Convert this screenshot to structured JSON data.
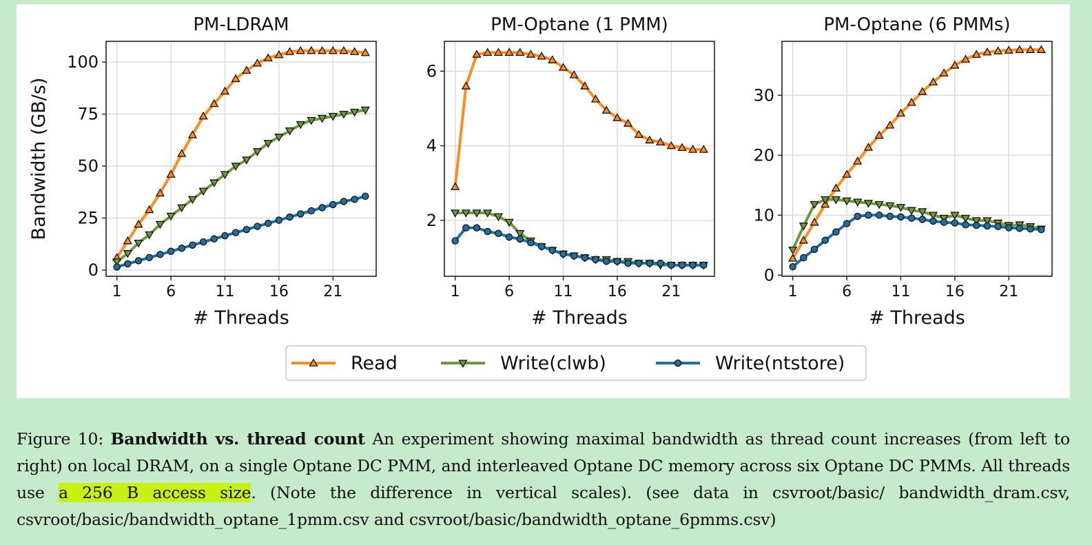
{
  "chart_data": [
    {
      "type": "line",
      "title": "PM-LDRAM",
      "xlabel": "# Threads",
      "ylabel": "Bandwidth (GB/s)",
      "xlim": [
        0,
        25
      ],
      "ylim": [
        -3,
        110
      ],
      "xticks": [
        1,
        6,
        11,
        16,
        21
      ],
      "yticks": [
        0,
        25,
        50,
        75,
        100
      ],
      "grid": true,
      "x": [
        1,
        2,
        3,
        4,
        5,
        6,
        7,
        8,
        9,
        10,
        11,
        12,
        13,
        14,
        15,
        16,
        17,
        18,
        19,
        20,
        21,
        22,
        23,
        24
      ],
      "series": [
        {
          "name": "Read",
          "color": "#ff8c1a",
          "marker": "triangle-up",
          "values": [
            6,
            14,
            22,
            29,
            37,
            46,
            56,
            65,
            74,
            80,
            86,
            92,
            96,
            99.5,
            102,
            103.5,
            105,
            105.5,
            105.5,
            105.5,
            105.5,
            105.5,
            105,
            104.5
          ]
        },
        {
          "name": "Write(clwb)",
          "color": "#6f9a3c",
          "marker": "triangle-down",
          "values": [
            4,
            8,
            13,
            17,
            22,
            26,
            30,
            34,
            38,
            42,
            46,
            50,
            53,
            57,
            61,
            64,
            67,
            70,
            72,
            73,
            74,
            75,
            76,
            77
          ]
        },
        {
          "name": "Write(ntstore)",
          "color": "#1f6f9f",
          "marker": "circle",
          "values": [
            1.5,
            3,
            4.5,
            6,
            7.5,
            9,
            10.5,
            12,
            13.5,
            15,
            16.5,
            18,
            19.5,
            21,
            22.5,
            24,
            25.5,
            27,
            28.5,
            30,
            31.5,
            33,
            34,
            35.5
          ]
        }
      ]
    },
    {
      "type": "line",
      "title": "PM-Optane (1 PMM)",
      "xlabel": "# Threads",
      "ylabel": "",
      "xlim": [
        0,
        25
      ],
      "ylim": [
        0.5,
        6.8
      ],
      "xticks": [
        1,
        6,
        11,
        16,
        21
      ],
      "yticks": [
        2,
        4,
        6
      ],
      "grid": true,
      "x": [
        1,
        2,
        3,
        4,
        5,
        6,
        7,
        8,
        9,
        10,
        11,
        12,
        13,
        14,
        15,
        16,
        17,
        18,
        19,
        20,
        21,
        22,
        23,
        24
      ],
      "series": [
        {
          "name": "Read",
          "color": "#ff8c1a",
          "marker": "triangle-up",
          "values": [
            2.9,
            5.6,
            6.45,
            6.5,
            6.5,
            6.5,
            6.5,
            6.45,
            6.4,
            6.3,
            6.1,
            5.9,
            5.6,
            5.25,
            4.95,
            4.75,
            4.6,
            4.3,
            4.15,
            4.1,
            4.0,
            3.95,
            3.9,
            3.9
          ]
        },
        {
          "name": "Write(clwb)",
          "color": "#6f9a3c",
          "marker": "triangle-down",
          "values": [
            2.2,
            2.2,
            2.2,
            2.2,
            2.1,
            1.95,
            1.65,
            1.45,
            1.3,
            1.2,
            1.1,
            1.05,
            1.0,
            0.95,
            0.95,
            0.9,
            0.9,
            0.85,
            0.85,
            0.8,
            0.8,
            0.8,
            0.8,
            0.8
          ]
        },
        {
          "name": "Write(ntstore)",
          "color": "#1f6f9f",
          "marker": "circle",
          "values": [
            1.45,
            1.8,
            1.8,
            1.7,
            1.65,
            1.55,
            1.5,
            1.4,
            1.3,
            1.2,
            1.1,
            1.05,
            1.0,
            0.95,
            0.9,
            0.9,
            0.85,
            0.85,
            0.85,
            0.85,
            0.8,
            0.8,
            0.8,
            0.8
          ]
        }
      ]
    },
    {
      "type": "line",
      "title": "PM-Optane (6 PMMs)",
      "xlabel": "# Threads",
      "ylabel": "",
      "xlim": [
        0,
        25
      ],
      "ylim": [
        -0.2,
        39
      ],
      "xticks": [
        1,
        6,
        11,
        16,
        21
      ],
      "yticks": [
        0,
        10,
        20,
        30
      ],
      "grid": true,
      "x": [
        1,
        2,
        3,
        4,
        5,
        6,
        7,
        8,
        9,
        10,
        11,
        12,
        13,
        14,
        15,
        16,
        17,
        18,
        19,
        20,
        21,
        22,
        23,
        24
      ],
      "series": [
        {
          "name": "Read",
          "color": "#ff8c1a",
          "marker": "triangle-up",
          "values": [
            2.8,
            5.8,
            8.8,
            11.8,
            14.5,
            16.8,
            19,
            21.3,
            23.3,
            25,
            27,
            28.8,
            30.6,
            32.2,
            33.7,
            35,
            36,
            36.8,
            37.2,
            37.4,
            37.5,
            37.6,
            37.6,
            37.6
          ]
        },
        {
          "name": "Write(clwb)",
          "color": "#6f9a3c",
          "marker": "triangle-down",
          "values": [
            4.2,
            8.2,
            11.8,
            12.6,
            12.6,
            12.4,
            12.2,
            12,
            11.8,
            11.6,
            11.3,
            10.8,
            10.6,
            10,
            9.5,
            10,
            9.5,
            9.1,
            9.1,
            8.7,
            8.3,
            8.4,
            8.1,
            7.7
          ]
        },
        {
          "name": "Write(ntstore)",
          "color": "#1f6f9f",
          "marker": "circle",
          "values": [
            1.4,
            2.9,
            4.3,
            5.8,
            7.2,
            8.6,
            9.8,
            10,
            10,
            9.8,
            9.7,
            9.5,
            9.3,
            9,
            8.8,
            8.7,
            8.4,
            8.3,
            8.2,
            8.1,
            7.9,
            7.8,
            7.7,
            7.6
          ]
        }
      ]
    }
  ],
  "legend": {
    "placement": "bottom-center",
    "entries": [
      "Read",
      "Write(clwb)",
      "Write(ntstore)"
    ]
  },
  "caption": {
    "prefix": "Figure 10: ",
    "bold": "Bandwidth vs. thread count",
    "text_1": " An experiment showing maximal bandwidth as thread count increases (from left to right) on local DRAM, on a single Optane DC PMM, and interleaved Optane DC memory across six Optane DC PMMs.  All threads use ",
    "highlight": "a 256 B access size",
    "text_2": ".  (Note the difference in vertical scales). (see data in csvroot/basic/ bandwidth_dram.csv,  csvroot/basic/bandwidth_optane_1pmm.csv and  csvroot/basic/bandwidth_optane_6pmms.csv)"
  }
}
